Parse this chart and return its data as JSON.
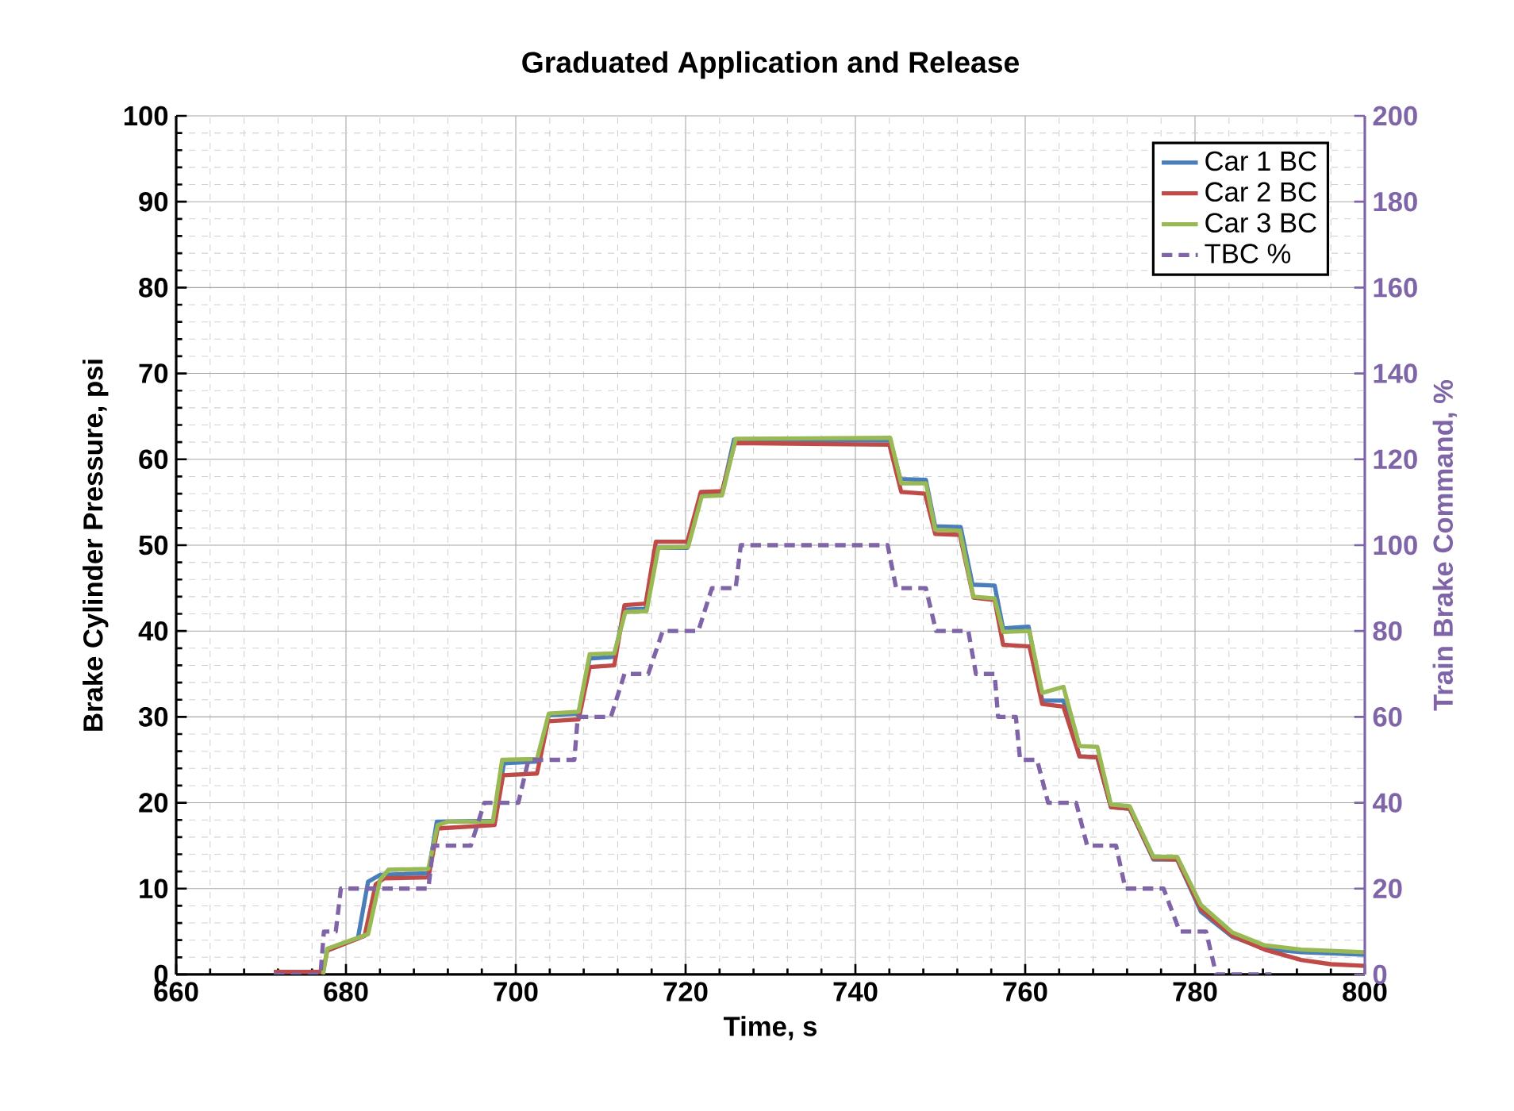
{
  "chart_data": {
    "type": "line",
    "title": "Graduated Application and Release",
    "xlabel": "Time, s",
    "ylabel": "Brake Cylinder Pressure, psi",
    "y2label": "Train Brake Command, %",
    "xlim": [
      660,
      800
    ],
    "xticks": [
      660,
      680,
      700,
      720,
      740,
      760,
      780,
      800
    ],
    "ylim": [
      0,
      100
    ],
    "yticks": [
      0,
      10,
      20,
      30,
      40,
      50,
      60,
      70,
      80,
      90,
      100
    ],
    "y2lim": [
      0,
      200
    ],
    "y2ticks": [
      0,
      20,
      40,
      60,
      80,
      100,
      120,
      140,
      160,
      180,
      200
    ],
    "grid": true,
    "legend": "top right",
    "series": [
      {
        "name": "Car 1 BC",
        "color": "#4a7ebb",
        "x": [
          677.8,
          681.4,
          682.6,
          684.0,
          689.7,
          690.7,
          697.5,
          698.6,
          702.5,
          703.9,
          707.4,
          708.7,
          711.6,
          712.8,
          715.3,
          716.7,
          720.2,
          721.8,
          724.3,
          725.7,
          744.1,
          745.3,
          748.3,
          749.4,
          752.4,
          753.8,
          756.4,
          757.4,
          760.4,
          762.0,
          764.5,
          766.4,
          768.5,
          770.1,
          772.3,
          775.1,
          777.9,
          780.7,
          784.4,
          788.2,
          792.5,
          800
        ],
        "values": [
          2.8,
          4.2,
          10.8,
          11.6,
          11.8,
          17.8,
          17.9,
          24.6,
          24.8,
          30.2,
          30.4,
          36.8,
          37.0,
          42.5,
          42.6,
          49.7,
          49.7,
          56.0,
          56.1,
          62.3,
          62.2,
          57.7,
          57.6,
          52.2,
          52.1,
          45.4,
          45.3,
          40.3,
          40.5,
          31.9,
          31.9,
          25.4,
          25.3,
          19.5,
          19.3,
          13.4,
          13.4,
          7.3,
          4.4,
          3.0,
          2.6,
          2.3
        ]
      },
      {
        "name": "Car 2 BC",
        "color": "#be4b48",
        "x": [
          671.5,
          677.3,
          677.8,
          682.2,
          683.5,
          684.5,
          689.7,
          690.8,
          697.5,
          698.5,
          702.5,
          703.8,
          707.4,
          708.7,
          711.6,
          712.8,
          715.3,
          716.5,
          720.2,
          721.8,
          724.3,
          725.8,
          744.0,
          745.4,
          748.2,
          749.4,
          752.3,
          753.9,
          756.4,
          757.4,
          760.5,
          762.0,
          764.5,
          766.4,
          768.5,
          770.1,
          772.3,
          775.1,
          777.9,
          780.7,
          784.4,
          788.2,
          792.5,
          796,
          800
        ],
        "values": [
          0.3,
          0.3,
          2.8,
          4.5,
          10.5,
          11.2,
          11.3,
          17.0,
          17.4,
          23.2,
          23.4,
          29.5,
          29.7,
          35.8,
          36.0,
          43.0,
          43.2,
          50.4,
          50.4,
          56.2,
          56.3,
          61.9,
          61.7,
          56.2,
          56.0,
          51.3,
          51.2,
          43.9,
          43.6,
          38.4,
          38.2,
          31.5,
          31.2,
          25.4,
          25.3,
          19.5,
          19.3,
          13.5,
          13.4,
          7.6,
          4.5,
          2.9,
          1.7,
          1.2,
          1.0
        ]
      },
      {
        "name": "Car 3 BC",
        "color": "#98b954",
        "x": [
          677.3,
          677.8,
          682.6,
          684.0,
          685.0,
          689.7,
          690.8,
          692,
          697.3,
          698.4,
          702.5,
          703.9,
          707.4,
          708.7,
          711.6,
          712.9,
          715.4,
          716.8,
          720.3,
          721.9,
          724.3,
          725.9,
          744.1,
          745.4,
          748.3,
          749.4,
          752.3,
          753.9,
          756.4,
          757.4,
          760.5,
          762.0,
          764.5,
          766.4,
          768.5,
          770.1,
          772.3,
          775.1,
          777.9,
          780.7,
          784.4,
          788.2,
          792.5,
          800
        ],
        "values": [
          0.0,
          3.0,
          4.7,
          11.0,
          12.2,
          12.3,
          17.4,
          17.8,
          17.8,
          25.0,
          25.1,
          30.4,
          30.6,
          37.3,
          37.4,
          42.2,
          42.3,
          49.7,
          49.8,
          55.7,
          55.8,
          62.4,
          62.5,
          57.2,
          57.2,
          51.8,
          51.7,
          44.0,
          43.8,
          39.9,
          40.0,
          32.8,
          33.5,
          26.6,
          26.5,
          19.8,
          19.6,
          13.7,
          13.7,
          8.1,
          4.9,
          3.4,
          2.9,
          2.6
        ]
      },
      {
        "name": "TBC %",
        "color": "#7f64a8",
        "axis": "y2",
        "line_style": "dashed",
        "x": [
          671.5,
          677.0,
          677.4,
          678.8,
          679.4,
          689.7,
          690.3,
          694.7,
          696.3,
          700.3,
          701.5,
          706.9,
          707.3,
          711.2,
          712.8,
          715.6,
          717.3,
          721.5,
          723.1,
          725.9,
          726.5,
          743.8,
          744.8,
          748.3,
          749.5,
          753.3,
          754.2,
          756.4,
          756.8,
          758.9,
          759.4,
          761.4,
          762.7,
          766.0,
          767.3,
          770.7,
          771.8,
          776.3,
          778.2,
          781.3,
          782.5,
          789
        ],
        "values": [
          0,
          0,
          10,
          10,
          20,
          20,
          30,
          30,
          40,
          40,
          50,
          50,
          60,
          60,
          70,
          70,
          80,
          80,
          90,
          90,
          100,
          100,
          90,
          90,
          80,
          80,
          70,
          70,
          60,
          60,
          50,
          50,
          40,
          40,
          30,
          30,
          20,
          20,
          10,
          10,
          0,
          0
        ]
      }
    ]
  }
}
